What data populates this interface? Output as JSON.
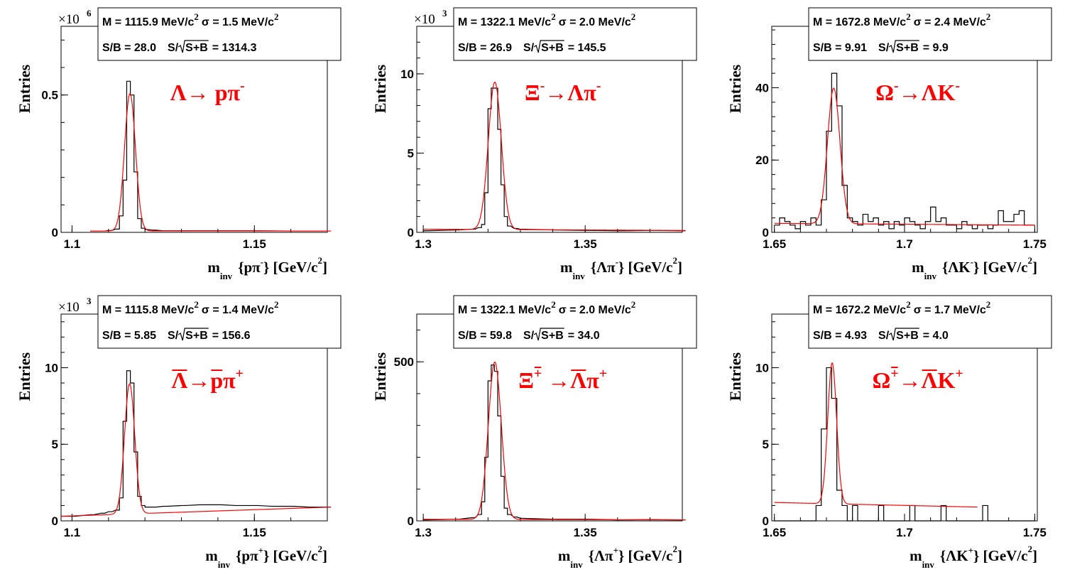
{
  "charts": [
    {
      "id": "lambda",
      "ylabel": "Entries",
      "multiplier": "×10",
      "multiplier_exp": "6",
      "x_ticks": [
        1.1,
        1.15
      ],
      "x_tick_labels": [
        "1.1",
        "1.15"
      ],
      "y_ticks": [
        0,
        0.5
      ],
      "y_tick_labels": [
        "0",
        "0.5"
      ],
      "xlabel": {
        "m": "m",
        "sub": "inv",
        "open": "{pπ",
        "sup": "-",
        "close": "} [GeV/c",
        "sup2": "2",
        "end": "]"
      },
      "stats": {
        "M_text": "M = 1115.9 MeV/c",
        "M_exp": "2",
        "sigma_text": "σ = 1.5 MeV/c",
        "sigma_exp": "2",
        "SB_text": "S/B = 28.0",
        "signif_label": "S/",
        "signif_rad": "S+B",
        "signif_value": "= 1314.3"
      },
      "decay": {
        "parts": [
          {
            "t": "Λ→ pπ"
          },
          {
            "t": "-",
            "sup": true
          }
        ]
      }
    },
    {
      "id": "xi",
      "ylabel": "Entries",
      "multiplier": "×10",
      "multiplier_exp": "3",
      "x_ticks": [
        1.3,
        1.35
      ],
      "x_tick_labels": [
        "1.3",
        "1.35"
      ],
      "y_ticks": [
        0,
        5,
        10
      ],
      "y_tick_labels": [
        "0",
        "5",
        "10"
      ],
      "xlabel": {
        "m": "m",
        "sub": "inv",
        "open": "{Λπ",
        "sup": "-",
        "close": "} [GeV/c",
        "sup2": "2",
        "end": "]"
      },
      "stats": {
        "M_text": "M = 1322.1 MeV/c",
        "M_exp": "2",
        "sigma_text": "σ = 2.0 MeV/c",
        "sigma_exp": "2",
        "SB_text": "S/B = 26.9",
        "signif_label": "S/",
        "signif_rad": "S+B",
        "signif_value": "= 145.5"
      },
      "decay": {
        "parts": [
          {
            "t": "Ξ"
          },
          {
            "t": "-",
            "sup": true
          },
          {
            "t": "→Λπ"
          },
          {
            "t": "-",
            "sup": true
          }
        ]
      }
    },
    {
      "id": "omega",
      "ylabel": "Entries",
      "multiplier": "",
      "multiplier_exp": "",
      "x_ticks": [
        1.65,
        1.7,
        1.75
      ],
      "x_tick_labels": [
        "1.65",
        "1.7",
        "1.75"
      ],
      "y_ticks": [
        0,
        20,
        40
      ],
      "y_tick_labels": [
        "0",
        "20",
        "40"
      ],
      "xlabel": {
        "m": "m",
        "sub": "inv",
        "open": "{ΛK",
        "sup": "-",
        "close": "} [GeV/c",
        "sup2": "2",
        "end": "]"
      },
      "stats": {
        "M_text": "M = 1672.8 MeV/c",
        "M_exp": "2",
        "sigma_text": "σ = 2.4 MeV/c",
        "sigma_exp": "2",
        "SB_text": "S/B = 9.91",
        "signif_label": "S/",
        "signif_rad": "S+B",
        "signif_value": "= 9.9"
      },
      "decay": {
        "parts": [
          {
            "t": "Ω"
          },
          {
            "t": "-",
            "sup": true
          },
          {
            "t": "→ΛK"
          },
          {
            "t": "-",
            "sup": true
          }
        ]
      }
    },
    {
      "id": "antilambda",
      "ylabel": "Entries",
      "multiplier": "×10",
      "multiplier_exp": "3",
      "x_ticks": [
        1.1,
        1.15
      ],
      "x_tick_labels": [
        "1.1",
        "1.15"
      ],
      "y_ticks": [
        0,
        5,
        10
      ],
      "y_tick_labels": [
        "0",
        "5",
        "10"
      ],
      "xlabel": {
        "m": "m",
        "sub": "inv",
        "open": "{pπ",
        "sup": "+",
        "close": "} [GeV/c",
        "sup2": "2",
        "end": "]"
      },
      "stats": {
        "M_text": "M = 1115.8 MeV/c",
        "M_exp": "2",
        "sigma_text": "σ = 1.4 MeV/c",
        "sigma_exp": "2",
        "SB_text": "S/B = 5.85",
        "signif_label": "S/",
        "signif_rad": "S+B",
        "signif_value": "= 156.6"
      },
      "decay": {
        "parts": [
          {
            "t": "Λ",
            "bar": true
          },
          {
            "t": "→"
          },
          {
            "t": "p",
            "bar": true
          },
          {
            "t": "π"
          },
          {
            "t": "+",
            "sup": true
          }
        ]
      }
    },
    {
      "id": "antixi",
      "ylabel": "Entries",
      "multiplier": "",
      "multiplier_exp": "",
      "x_ticks": [
        1.3,
        1.35
      ],
      "x_tick_labels": [
        "1.3",
        "1.35"
      ],
      "y_ticks": [
        0,
        500
      ],
      "y_tick_labels": [
        "0",
        "500"
      ],
      "xlabel": {
        "m": "m",
        "sub": "inv",
        "open": "{Λπ",
        "sup": "+",
        "close": "} [GeV/c",
        "sup2": "2",
        "end": "]"
      },
      "stats": {
        "M_text": "M = 1322.1 MeV/c",
        "M_exp": "2",
        "sigma_text": "σ = 2.0 MeV/c",
        "sigma_exp": "2",
        "SB_text": "S/B = 59.8",
        "signif_label": "S/",
        "signif_rad": "S+B",
        "signif_value": "= 34.0"
      },
      "decay": {
        "parts": [
          {
            "t": "Ξ"
          },
          {
            "t": "+",
            "sup": true,
            "bar": true
          },
          {
            "t": " →"
          },
          {
            "t": "Λ",
            "bar": true
          },
          {
            "t": "π"
          },
          {
            "t": "+",
            "sup": true
          }
        ]
      }
    },
    {
      "id": "antiomega",
      "ylabel": "Entries",
      "multiplier": "",
      "multiplier_exp": "",
      "x_ticks": [
        1.65,
        1.7,
        1.75
      ],
      "x_tick_labels": [
        "1.65",
        "1.7",
        "1.75"
      ],
      "y_ticks": [
        0,
        5,
        10
      ],
      "y_tick_labels": [
        "0",
        "5",
        "10"
      ],
      "xlabel": {
        "m": "m",
        "sub": "inv",
        "open": "{ΛK",
        "sup": "+",
        "close": "} [GeV/c",
        "sup2": "2",
        "end": "]"
      },
      "stats": {
        "M_text": "M = 1672.2 MeV/c",
        "M_exp": "2",
        "sigma_text": "σ = 1.7 MeV/c",
        "sigma_exp": "2",
        "SB_text": "S/B = 4.93",
        "signif_label": "S/",
        "signif_rad": "S+B",
        "signif_value": "= 4.0"
      },
      "decay": {
        "parts": [
          {
            "t": "Ω"
          },
          {
            "t": "+",
            "sup": true,
            "bar": true
          },
          {
            "t": "→"
          },
          {
            "t": "Λ",
            "bar": true
          },
          {
            "t": "K"
          },
          {
            "t": "+",
            "sup": true
          }
        ]
      }
    }
  ],
  "chart_data": [
    {
      "type": "histogram",
      "x_range": [
        1.097,
        1.17
      ],
      "y_range": [
        0,
        0.75
      ],
      "bin_width": 0.001,
      "series": [
        {
          "kind": "step",
          "x": [
            1.105,
            1.108,
            1.11,
            1.112,
            1.113,
            1.114,
            1.115,
            1.116,
            1.117,
            1.118,
            1.119,
            1.12,
            1.122,
            1.125,
            1.13,
            1.14,
            1.15,
            1.16,
            1.17
          ],
          "y": [
            0.005,
            0.005,
            0.007,
            0.012,
            0.06,
            0.19,
            0.55,
            0.5,
            0.22,
            0.05,
            0.015,
            0.01,
            0.008,
            0.006,
            0.006,
            0.006,
            0.006,
            0.005,
            0.005
          ]
        },
        {
          "kind": "fit",
          "color": "#ff0000",
          "peak": 1.1159,
          "sigma": 0.0015,
          "amp": 0.5,
          "bkg": [
            0.005,
            0.005
          ]
        }
      ]
    },
    {
      "type": "histogram",
      "x_range": [
        1.298,
        1.38
      ],
      "y_range": [
        0,
        13
      ],
      "bin_width": 0.001,
      "series": [
        {
          "kind": "step",
          "x": [
            1.3,
            1.31,
            1.315,
            1.317,
            1.318,
            1.319,
            1.32,
            1.321,
            1.322,
            1.323,
            1.324,
            1.325,
            1.326,
            1.328,
            1.33,
            1.34,
            1.35,
            1.36,
            1.37,
            1.38
          ],
          "y": [
            0.1,
            0.15,
            0.2,
            0.3,
            0.5,
            2.5,
            7.8,
            9.1,
            9.1,
            6.5,
            3.0,
            1.0,
            0.4,
            0.25,
            0.2,
            0.15,
            0.12,
            0.1,
            0.12,
            0.1
          ]
        },
        {
          "kind": "fit",
          "color": "#ff0000",
          "peak": 1.3221,
          "sigma": 0.002,
          "amp": 9.3,
          "bkg": [
            0.2,
            0.12
          ]
        }
      ]
    },
    {
      "type": "histogram",
      "x_range": [
        1.649,
        1.751
      ],
      "y_range": [
        0,
        57
      ],
      "bin_width": 0.002,
      "series": [
        {
          "kind": "step",
          "x": [
            1.65,
            1.652,
            1.654,
            1.656,
            1.658,
            1.66,
            1.662,
            1.664,
            1.666,
            1.668,
            1.67,
            1.672,
            1.674,
            1.676,
            1.678,
            1.68,
            1.682,
            1.684,
            1.686,
            1.688,
            1.69,
            1.692,
            1.694,
            1.696,
            1.698,
            1.7,
            1.702,
            1.704,
            1.706,
            1.708,
            1.71,
            1.712,
            1.714,
            1.716,
            1.718,
            1.72,
            1.722,
            1.724,
            1.726,
            1.728,
            1.73,
            1.732,
            1.734,
            1.736,
            1.738,
            1.74,
            1.742,
            1.744,
            1.746,
            1.748
          ],
          "y": [
            2,
            4,
            3,
            2,
            1,
            3,
            2,
            4,
            2,
            9,
            28,
            44,
            35,
            13,
            4,
            3,
            2,
            5,
            3,
            4,
            2,
            3,
            1,
            3,
            2,
            4,
            3,
            2,
            1,
            3,
            7,
            3,
            4,
            2,
            2,
            1,
            3,
            2,
            1,
            2,
            2,
            1,
            2,
            6,
            3,
            3,
            5,
            6,
            2,
            2
          ]
        },
        {
          "kind": "fit",
          "color": "#ff0000",
          "peak": 1.6728,
          "sigma": 0.0024,
          "amp": 37.5,
          "bkg": [
            2.5,
            2.0
          ]
        }
      ]
    },
    {
      "type": "histogram",
      "x_range": [
        1.097,
        1.17
      ],
      "y_range": [
        0,
        13.5
      ],
      "bin_width": 0.001,
      "series": [
        {
          "kind": "step",
          "x": [
            1.097,
            1.1,
            1.105,
            1.108,
            1.11,
            1.112,
            1.113,
            1.114,
            1.115,
            1.116,
            1.117,
            1.118,
            1.119,
            1.12,
            1.122,
            1.125,
            1.13,
            1.135,
            1.14,
            1.145,
            1.15,
            1.155,
            1.16,
            1.165,
            1.17
          ],
          "y": [
            0.3,
            0.3,
            0.4,
            0.5,
            0.6,
            0.7,
            1.5,
            6.5,
            9.8,
            9.0,
            4.5,
            1.6,
            1.0,
            0.9,
            0.9,
            0.95,
            1.0,
            1.05,
            1.05,
            1.0,
            1.0,
            0.95,
            0.95,
            0.9,
            0.9
          ]
        },
        {
          "kind": "fit",
          "color": "#ff0000",
          "peak": 1.1158,
          "sigma": 0.0014,
          "amp": 8.5,
          "bkg": [
            0.3,
            0.9
          ]
        }
      ]
    },
    {
      "type": "histogram",
      "x_range": [
        1.298,
        1.38
      ],
      "y_range": [
        0,
        650
      ],
      "bin_width": 0.001,
      "series": [
        {
          "kind": "step",
          "x": [
            1.3,
            1.31,
            1.315,
            1.317,
            1.318,
            1.319,
            1.32,
            1.321,
            1.322,
            1.323,
            1.324,
            1.325,
            1.326,
            1.328,
            1.33,
            1.34,
            1.35,
            1.36,
            1.37,
            1.38
          ],
          "y": [
            3,
            5,
            10,
            20,
            60,
            200,
            440,
            490,
            470,
            330,
            140,
            40,
            20,
            12,
            8,
            5,
            5,
            3,
            4,
            3
          ]
        },
        {
          "kind": "fit",
          "color": "#ff0000",
          "peak": 1.3221,
          "sigma": 0.002,
          "amp": 495,
          "bkg": [
            5,
            3
          ]
        }
      ]
    },
    {
      "type": "histogram",
      "x_range": [
        1.649,
        1.751
      ],
      "y_range": [
        0,
        13.5
      ],
      "bin_width": 0.002,
      "series": [
        {
          "kind": "step",
          "x": [
            1.65,
            1.652,
            1.654,
            1.656,
            1.658,
            1.66,
            1.662,
            1.664,
            1.666,
            1.668,
            1.67,
            1.672,
            1.674,
            1.676,
            1.678,
            1.68,
            1.682,
            1.684,
            1.686,
            1.688,
            1.69,
            1.692,
            1.694,
            1.696,
            1.698,
            1.7,
            1.702,
            1.704,
            1.706,
            1.708,
            1.71,
            1.712,
            1.714,
            1.716,
            1.718,
            1.72,
            1.722,
            1.724,
            1.726,
            1.728,
            1.73,
            1.732,
            1.734,
            1.736,
            1.738,
            1.74,
            1.742,
            1.744,
            1.746,
            1.748
          ],
          "y": [
            0,
            0,
            0,
            0,
            0,
            0,
            0,
            0,
            1,
            6,
            10,
            8,
            2,
            1,
            0,
            1,
            0,
            0,
            0,
            0,
            1,
            0,
            0,
            0,
            0,
            0,
            1,
            0,
            0,
            0,
            0,
            0,
            1,
            0,
            0,
            0,
            0,
            0,
            0,
            0,
            1,
            0,
            0,
            0,
            0,
            0,
            0,
            0,
            0,
            0
          ]
        },
        {
          "kind": "fit",
          "color": "#ff0000",
          "peak": 1.6722,
          "sigma": 0.0017,
          "amp": 9.2,
          "bkg": [
            1.2,
            0.9
          ],
          "fit_end": 1.728
        }
      ]
    }
  ]
}
